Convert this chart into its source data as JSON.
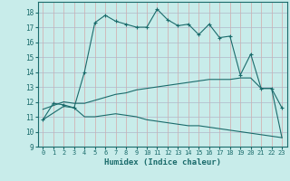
{
  "xlabel": "Humidex (Indice chaleur)",
  "xlim": [
    -0.5,
    23.5
  ],
  "ylim": [
    9,
    18.7
  ],
  "xticks": [
    0,
    1,
    2,
    3,
    4,
    5,
    6,
    7,
    8,
    9,
    10,
    11,
    12,
    13,
    14,
    15,
    16,
    17,
    18,
    19,
    20,
    21,
    22,
    23
  ],
  "yticks": [
    9,
    10,
    11,
    12,
    13,
    14,
    15,
    16,
    17,
    18
  ],
  "bg_color": "#c8ecea",
  "line_color": "#1a6b6b",
  "grid_color_h": "#b0b8c8",
  "grid_color_v": "#d4a8a8",
  "curve1_x": [
    0,
    1,
    2,
    3,
    4,
    5,
    6,
    7,
    8,
    9,
    10,
    11,
    12,
    13,
    14,
    15,
    16,
    17,
    18,
    19,
    20,
    21,
    22,
    23
  ],
  "curve1_y": [
    10.8,
    11.9,
    11.8,
    11.6,
    14.0,
    17.3,
    17.8,
    17.4,
    17.2,
    17.0,
    17.0,
    18.2,
    17.5,
    17.1,
    17.2,
    16.5,
    17.2,
    16.3,
    16.4,
    13.8,
    15.2,
    12.9,
    12.9,
    11.6
  ],
  "curve2_x": [
    0,
    2,
    3,
    4,
    5,
    6,
    7,
    8,
    9,
    10,
    11,
    12,
    13,
    14,
    15,
    16,
    17,
    18,
    19,
    20,
    21,
    22,
    23
  ],
  "curve2_y": [
    11.5,
    12.0,
    11.9,
    11.9,
    12.1,
    12.3,
    12.5,
    12.6,
    12.8,
    12.9,
    13.0,
    13.1,
    13.2,
    13.3,
    13.4,
    13.5,
    13.5,
    13.5,
    13.6,
    13.6,
    12.9,
    12.9,
    9.6
  ],
  "curve3_x": [
    0,
    2,
    3,
    4,
    5,
    6,
    7,
    8,
    9,
    10,
    11,
    12,
    13,
    14,
    15,
    16,
    17,
    18,
    19,
    20,
    21,
    22,
    23
  ],
  "curve3_y": [
    10.8,
    11.7,
    11.6,
    11.0,
    11.0,
    11.1,
    11.2,
    11.1,
    11.0,
    10.8,
    10.7,
    10.6,
    10.5,
    10.4,
    10.4,
    10.3,
    10.2,
    10.1,
    10.0,
    9.9,
    9.8,
    9.7,
    9.6
  ]
}
